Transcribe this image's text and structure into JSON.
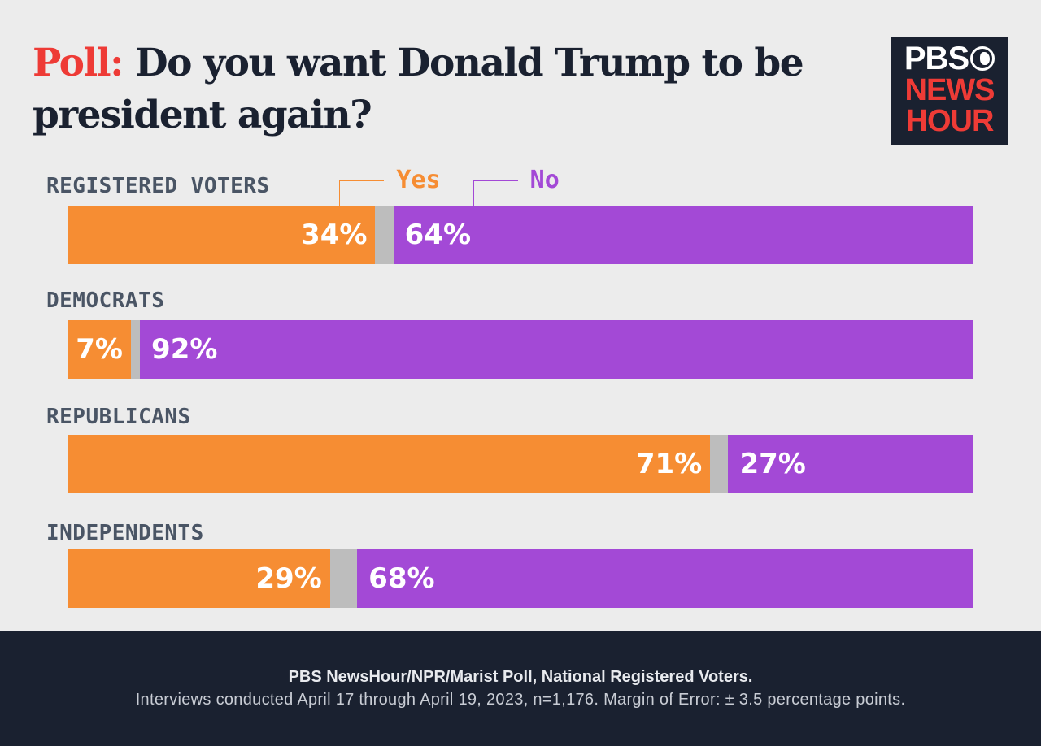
{
  "title": {
    "prefix": "Poll:",
    "text": "Do you want Donald Trump to be president again?"
  },
  "logo": {
    "line1": "PBS",
    "line2": "NEWS",
    "line3": "HOUR",
    "icon": "pbs-head-icon"
  },
  "colors": {
    "yes": "#f68d33",
    "no": "#a349d6",
    "unsure": "#bdbdbd",
    "title_accent": "#ee3b36",
    "footer_bg": "#1a2130"
  },
  "chart_data": {
    "type": "bar",
    "orientation": "horizontal-stacked",
    "categories": [
      "REGISTERED VOTERS",
      "DEMOCRATS",
      "REPUBLICANS",
      "INDEPENDENTS"
    ],
    "series": [
      {
        "name": "Yes",
        "values": [
          34,
          7,
          71,
          29
        ]
      },
      {
        "name": "No",
        "values": [
          64,
          92,
          27,
          68
        ]
      }
    ],
    "value_labels": {
      "yes": [
        "34%",
        "7%",
        "71%",
        "29%"
      ],
      "no": [
        "64%",
        "92%",
        "27%",
        "68%"
      ]
    },
    "legend": {
      "yes": "Yes",
      "no": "No",
      "placement": "top"
    },
    "xlim": [
      0,
      100
    ]
  },
  "footer": {
    "source": "PBS NewsHour/NPR/Marist Poll, National Registered Voters.",
    "note": "Interviews conducted April 17 through April 19, 2023, n=1,176. Margin of Error: ± 3.5 percentage points."
  }
}
